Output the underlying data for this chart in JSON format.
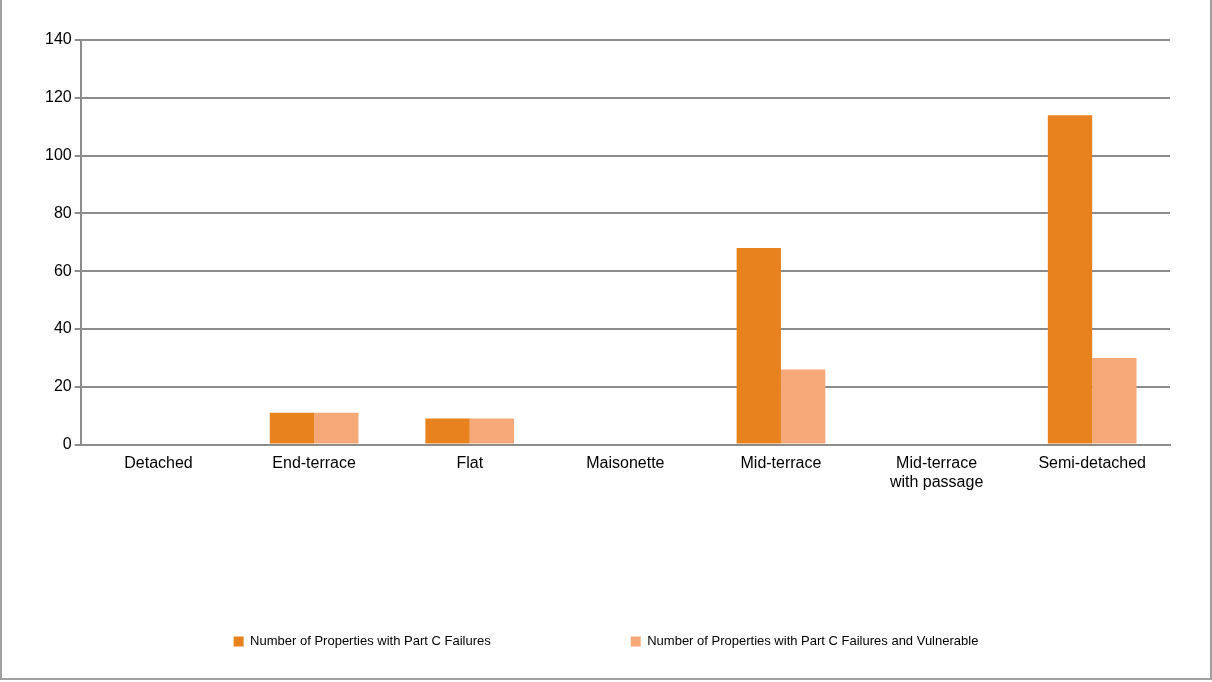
{
  "chart_data": {
    "type": "bar",
    "categories": [
      "Detached",
      "End-terrace",
      "Flat",
      "Maisonette",
      "Mid-terrace",
      "Mid-terrace with passage",
      "Semi-detached"
    ],
    "series": [
      {
        "name": "Number of Properties with Part C Failures",
        "color": "#e8821f",
        "values": [
          0,
          11,
          9,
          0,
          68,
          0,
          114
        ]
      },
      {
        "name": "Number of Properties with Part C Failures and Vulnerable",
        "color": "#f5a878",
        "values": [
          0,
          11,
          9,
          0,
          26,
          0,
          30
        ]
      }
    ],
    "ylim": [
      0,
      140
    ],
    "yticks": [
      0,
      20,
      40,
      60,
      80,
      100,
      120,
      140
    ],
    "grid": "y",
    "legend": "bottom"
  }
}
